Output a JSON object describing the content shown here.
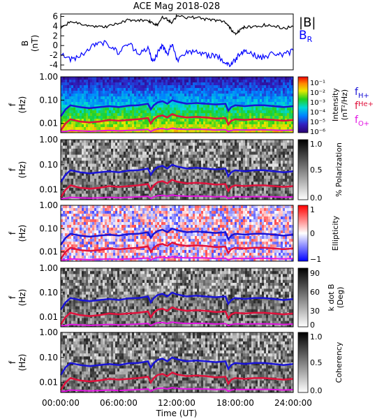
{
  "chart_data": [
    {
      "type": "line",
      "title": "ACE Mag 2018-028",
      "ylabel": [
        "B",
        "(nT)"
      ],
      "ylim": [
        -5,
        6.5
      ],
      "yticks": [
        -4,
        -2,
        0,
        2,
        4,
        6
      ],
      "legend": [
        {
          "label": "|B|",
          "color": "#000000"
        },
        {
          "label": "B",
          "sub": "R",
          "color": "#0000ff"
        }
      ],
      "series": [
        {
          "name": "|B|",
          "color": "#000000",
          "x": [
            0,
            1,
            2,
            3,
            4,
            5,
            6,
            7,
            8,
            9,
            9.5,
            10,
            10.5,
            11,
            11.5,
            12,
            13,
            14,
            15,
            16,
            17,
            17.5,
            18,
            18.5,
            19,
            20,
            21,
            22,
            23,
            24
          ],
          "y": [
            3.5,
            5,
            4.5,
            4.2,
            3.8,
            4,
            4.6,
            5.3,
            5.2,
            5.2,
            4.6,
            4.3,
            6,
            5.3,
            4.6,
            6.3,
            5.8,
            5.8,
            5.4,
            5.2,
            4.8,
            3.5,
            2.5,
            3.2,
            3.8,
            3.8,
            4.2,
            4,
            3.6,
            3.9
          ]
        },
        {
          "name": "BR",
          "color": "#0000ff",
          "x": [
            0,
            1,
            2,
            3,
            4,
            5,
            6,
            7,
            8,
            9,
            9.5,
            10,
            10.5,
            11,
            11.5,
            12,
            13,
            14,
            15,
            16,
            17,
            17.5,
            18,
            18.5,
            19,
            20,
            21,
            22,
            23,
            24
          ],
          "y": [
            -1.5,
            -3,
            -2,
            -0.5,
            1,
            0,
            -1.5,
            0.5,
            -1.5,
            -0.5,
            -3.5,
            -1.5,
            0,
            -2,
            0.5,
            -3,
            -1,
            -1.5,
            -2,
            -2,
            -3.5,
            -4,
            -3,
            -1.5,
            -1,
            -2,
            -2.5,
            -1.5,
            -2,
            -1
          ]
        }
      ]
    },
    {
      "type": "heatmap",
      "ylabel": [
        "f",
        "(Hz)"
      ],
      "yscale": "log",
      "ylim": [
        0.004,
        1.0
      ],
      "yticks": [
        "1.00",
        "0.10",
        "0.01"
      ],
      "colorbar": {
        "label": [
          "Intensity",
          "(nT²/Hz)"
        ],
        "ticks": [
          "10⁻¹",
          "10⁻²",
          "10⁻³",
          "10⁻⁴",
          "10⁻⁵",
          "10⁻⁶"
        ],
        "colormap": "rainbow"
      },
      "gyro_legend": [
        {
          "label": "f",
          "sub": "H+",
          "color": "#1a14d6"
        },
        {
          "label": "f",
          "sub": "He+",
          "color": "#e0123c"
        },
        {
          "label": "f",
          "sub": "O+",
          "color": "#e314e3"
        }
      ]
    },
    {
      "type": "heatmap",
      "ylabel": [
        "f",
        "(Hz)"
      ],
      "yscale": "log",
      "ylim": [
        0.004,
        1.0
      ],
      "yticks": [
        "1.00",
        "0.10",
        "0.01"
      ],
      "colorbar": {
        "label": [
          "% Polarization"
        ],
        "ticks": [
          "1.0",
          "0.5",
          "0.0"
        ],
        "colormap": "gray"
      }
    },
    {
      "type": "heatmap",
      "ylabel": [
        "f",
        "(Hz)"
      ],
      "yscale": "log",
      "ylim": [
        0.004,
        1.0
      ],
      "yticks": [
        "1.00",
        "0.10",
        "0.01"
      ],
      "colorbar": {
        "label": [
          "Ellipticity"
        ],
        "ticks": [
          "1",
          "0",
          "−1"
        ],
        "colormap": "bwr"
      }
    },
    {
      "type": "heatmap",
      "ylabel": [
        "f",
        "(Hz)"
      ],
      "yscale": "log",
      "ylim": [
        0.004,
        1.0
      ],
      "yticks": [
        "1.00",
        "0.10",
        "0.01"
      ],
      "colorbar": {
        "label": [
          "k dot B",
          "(Deg)"
        ],
        "ticks": [
          "90",
          "60",
          "30",
          "0"
        ],
        "colormap": "gray"
      }
    },
    {
      "type": "heatmap",
      "ylabel": [
        "f",
        "(Hz)"
      ],
      "yscale": "log",
      "ylim": [
        0.004,
        1.0
      ],
      "yticks": [
        "1.00",
        "0.10",
        "0.01"
      ],
      "colorbar": {
        "label": [
          "Coherency"
        ],
        "ticks": [
          "1.0",
          "0.5",
          "0.0"
        ],
        "colormap": "gray"
      },
      "xticks": [
        "00:00:00",
        "06:00:00",
        "12:00:00",
        "18:00:00",
        "24:00:00"
      ],
      "xlabel": "Time (UT)"
    }
  ],
  "gyrofrequency_lines": {
    "x": [
      0,
      0.5,
      1,
      2,
      3,
      4,
      5,
      6,
      7,
      8,
      9,
      9.3,
      9.6,
      10,
      10.5,
      11,
      11.5,
      12,
      13,
      14,
      15,
      16,
      17,
      17.3,
      17.6,
      18,
      19,
      20,
      21,
      22,
      23,
      24
    ],
    "fHplus": [
      0.02,
      0.04,
      0.06,
      0.05,
      0.045,
      0.05,
      0.055,
      0.05,
      0.058,
      0.06,
      0.07,
      0.04,
      0.06,
      0.08,
      0.09,
      0.07,
      0.1,
      0.085,
      0.07,
      0.075,
      0.07,
      0.065,
      0.07,
      0.035,
      0.05,
      0.06,
      0.055,
      0.06,
      0.06,
      0.055,
      0.05,
      0.055
    ],
    "fHeplus": [
      0.005,
      0.01,
      0.015,
      0.012,
      0.011,
      0.012,
      0.014,
      0.013,
      0.014,
      0.015,
      0.017,
      0.01,
      0.015,
      0.02,
      0.022,
      0.018,
      0.025,
      0.021,
      0.018,
      0.019,
      0.018,
      0.016,
      0.017,
      0.009,
      0.013,
      0.015,
      0.014,
      0.015,
      0.015,
      0.014,
      0.013,
      0.014
    ],
    "fOplus": [
      0.0045,
      0.0045,
      0.005,
      0.0048,
      0.0046,
      0.0048,
      0.005,
      0.0048,
      0.005,
      0.0052,
      0.0055,
      0.0045,
      0.0052,
      0.0058,
      0.006,
      0.0055,
      0.0062,
      0.0058,
      0.0055,
      0.0056,
      0.0055,
      0.0052,
      0.0054,
      0.0045,
      0.005,
      0.0053,
      0.0052,
      0.0053,
      0.0053,
      0.0052,
      0.005,
      0.0052
    ]
  },
  "colors": {
    "fHplus": "#1a14d6",
    "fHeplus": "#e0123c",
    "fOplus": "#e314e3",
    "BR": "#0000ff",
    "B": "#000000"
  }
}
